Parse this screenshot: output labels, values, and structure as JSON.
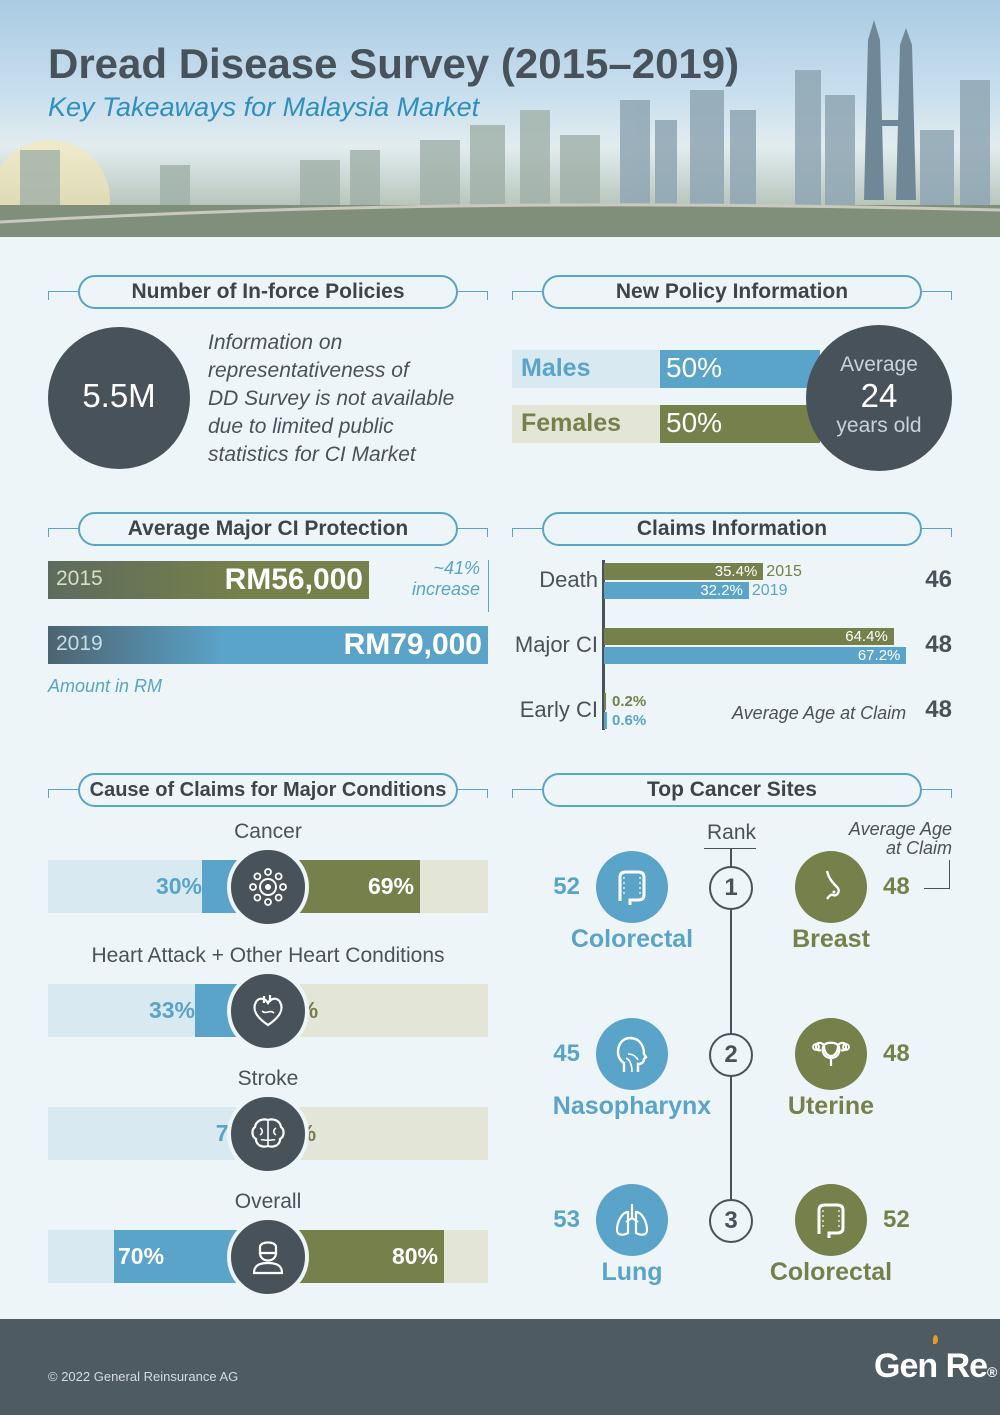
{
  "header": {
    "title": "Dread Disease Survey (2015–2019)",
    "subtitle": "Key Takeaways for Malaysia Market"
  },
  "inforce": {
    "section_title": "Number of In-force Policies",
    "value": "5.5M",
    "note_lines": [
      "Information on",
      "representativeness of",
      "DD Survey is not available",
      "due to limited public",
      "statistics for CI Market"
    ]
  },
  "new_policy": {
    "section_title": "New Policy Information",
    "males_label": "Males",
    "males_value": "50%",
    "females_label": "Females",
    "females_value": "50%",
    "avg_label": "Average",
    "avg_value": "24",
    "avg_unit": "years old"
  },
  "protection": {
    "section_title": "Average Major CI Protection",
    "rows": [
      {
        "year": "2015",
        "amount": "RM56,000",
        "value": 56000
      },
      {
        "year": "2019",
        "amount": "RM79,000",
        "value": 79000
      }
    ],
    "increase_line1": "~41%",
    "increase_line2": "increase",
    "note": "Amount in RM"
  },
  "claims_info": {
    "section_title": "Claims Information",
    "legend_2015": "2015",
    "legend_2019": "2019",
    "avg_age_label": "Average Age at Claim",
    "rows": [
      {
        "label": "Death",
        "v2015": "35.4%",
        "v2019": "32.2%",
        "age": "46",
        "n2015": 35.4,
        "n2019": 32.2
      },
      {
        "label": "Major CI",
        "v2015": "64.4%",
        "v2019": "67.2%",
        "age": "48",
        "n2015": 64.4,
        "n2019": 67.2
      },
      {
        "label": "Early CI",
        "v2015": "0.2%",
        "v2019": "0.6%",
        "age": "48",
        "n2015": 0.2,
        "n2019": 0.6
      }
    ]
  },
  "causes": {
    "section_title": "Cause of Claims for Major Conditions",
    "rows": [
      {
        "label": "Cancer",
        "left": "30%",
        "right": "69%",
        "left_n": 30,
        "right_n": 69,
        "icon": "cancer-cell-icon"
      },
      {
        "label": "Heart Attack + Other Heart Conditions",
        "left": "33%",
        "right": "6%",
        "left_n": 33,
        "right_n": 6,
        "icon": "heart-icon"
      },
      {
        "label": "Stroke",
        "left": "7%",
        "right": "5%",
        "left_n": 7,
        "right_n": 5,
        "icon": "brain-icon"
      },
      {
        "label": "Overall",
        "left": "70%",
        "right": "80%",
        "left_n": 70,
        "right_n": 80,
        "icon": "person-icon"
      }
    ]
  },
  "cancer_sites": {
    "section_title": "Top Cancer Sites",
    "rank_label": "Rank",
    "avg_age_label_1": "Average Age",
    "avg_age_label_2": "at Claim",
    "ranks": [
      {
        "rank": "1",
        "left_site": "Colorectal",
        "left_age": "52",
        "left_icon": "colon-icon",
        "right_site": "Breast",
        "right_age": "48",
        "right_icon": "breast-icon"
      },
      {
        "rank": "2",
        "left_site": "Nasopharynx",
        "left_age": "45",
        "left_icon": "head-profile-icon",
        "right_site": "Uterine",
        "right_age": "48",
        "right_icon": "uterus-icon"
      },
      {
        "rank": "3",
        "left_site": "Lung",
        "left_age": "53",
        "left_icon": "lungs-icon",
        "right_site": "Colorectal",
        "right_age": "52",
        "right_icon": "colon-icon"
      }
    ]
  },
  "footer": {
    "copyright": "© 2022 General Reinsurance AG",
    "logo": "Gen Re"
  },
  "colors": {
    "blue": "#5aa3c9",
    "olive": "#76804a",
    "dark": "#48525a",
    "light_blue": "#d8e9f1",
    "light_olive": "#e3e5d6"
  }
}
